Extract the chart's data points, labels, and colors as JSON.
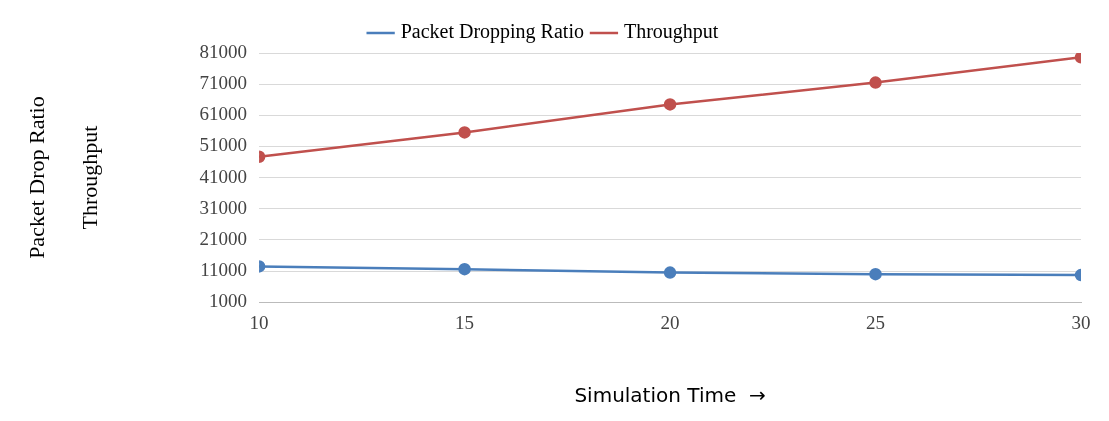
{
  "chart_data": {
    "type": "line",
    "xlabel": "Simulation Time  →",
    "ylabel": "Packet Drop Ratio\nThroughput",
    "x": [
      10,
      15,
      20,
      25,
      30
    ],
    "xlim": [
      10,
      30
    ],
    "xticks": [
      10,
      15,
      20,
      25,
      30
    ],
    "ylim": [
      1000,
      81000
    ],
    "yticks": [
      1000,
      11000,
      21000,
      31000,
      41000,
      51000,
      61000,
      71000,
      81000
    ],
    "grid": "y",
    "legend": "top",
    "marker": "circle",
    "series": [
      {
        "name": "Packet Dropping Ratio",
        "color": "#4a7ebb",
        "values": [
          12500,
          11600,
          10500,
          10000,
          9700
        ]
      },
      {
        "name": "Throughput",
        "color": "#c0504d",
        "values": [
          47700,
          55500,
          64500,
          71500,
          79600
        ]
      }
    ]
  }
}
